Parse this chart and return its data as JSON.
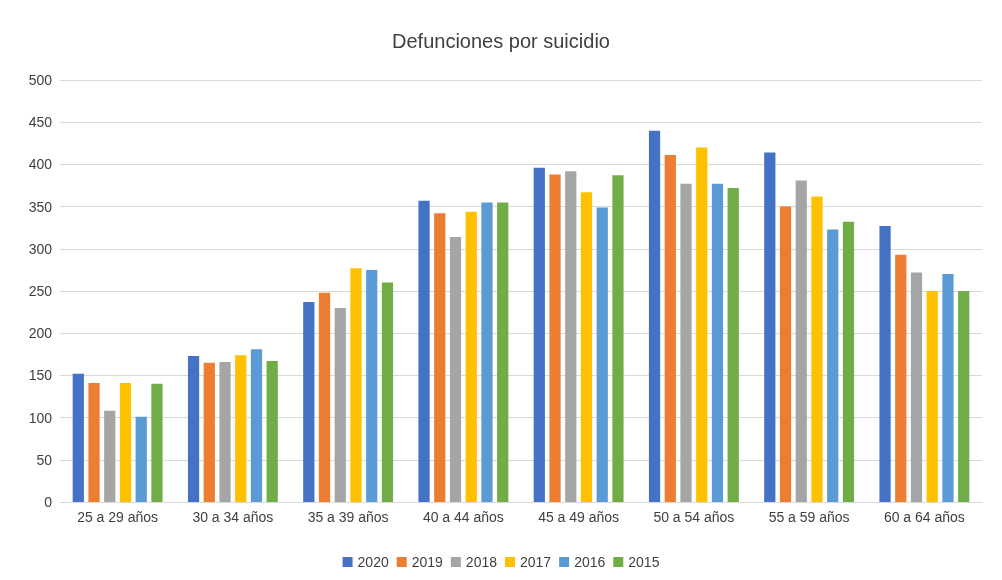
{
  "chart_data": {
    "type": "bar",
    "title": "Defunciones por suicidio",
    "categories": [
      "25 a 29 años",
      "30 a 34 años",
      "35 a 39 años",
      "40 a 44 años",
      "45 a 49 años",
      "50 a 54 años",
      "55 a 59 años",
      "60 a 64 años"
    ],
    "series": [
      {
        "name": "2020",
        "color": "#4472c4",
        "values": [
          152,
          173,
          237,
          357,
          396,
          440,
          414,
          327
        ]
      },
      {
        "name": "2019",
        "color": "#ed7d31",
        "values": [
          141,
          165,
          248,
          342,
          388,
          411,
          350,
          293
        ]
      },
      {
        "name": "2018",
        "color": "#a5a5a5",
        "values": [
          108,
          166,
          230,
          314,
          392,
          377,
          381,
          272
        ]
      },
      {
        "name": "2017",
        "color": "#ffc000",
        "values": [
          141,
          174,
          277,
          344,
          367,
          420,
          362,
          250
        ]
      },
      {
        "name": "2016",
        "color": "#5b9bd5",
        "values": [
          101,
          181,
          275,
          355,
          349,
          377,
          323,
          270
        ]
      },
      {
        "name": "2015",
        "color": "#70ad47",
        "values": [
          140,
          167,
          260,
          355,
          387,
          372,
          332,
          250
        ]
      }
    ],
    "ylim": [
      0,
      500
    ],
    "yticks": [
      0,
      50,
      100,
      150,
      200,
      250,
      300,
      350,
      400,
      450,
      500
    ],
    "grid": "y",
    "legend": "bottom"
  }
}
